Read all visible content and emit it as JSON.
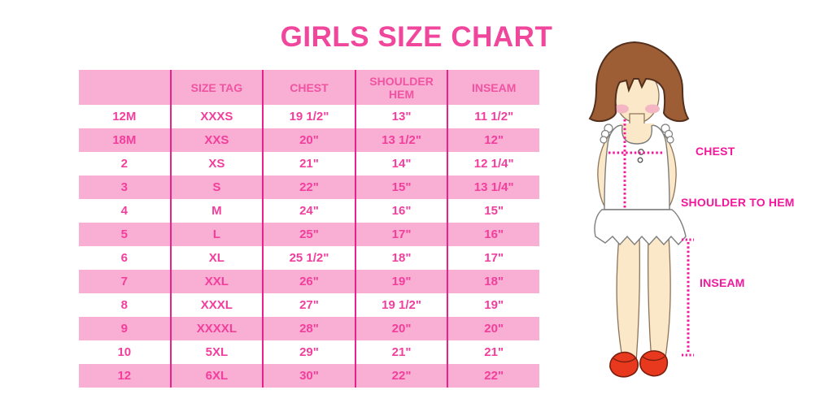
{
  "page": {
    "title": "GIRLS SIZE CHART"
  },
  "chart_data": {
    "type": "table",
    "title": "GIRLS SIZE CHART",
    "columns": [
      "",
      "SIZE TAG",
      "CHEST",
      "SHOULDER HEM",
      "INSEAM"
    ],
    "rows": [
      [
        "12M",
        "XXXS",
        "19 1/2\"",
        "13\"",
        "11 1/2\""
      ],
      [
        "18M",
        "XXS",
        "20\"",
        "13 1/2\"",
        "12\""
      ],
      [
        "2",
        "XS",
        "21\"",
        "14\"",
        "12 1/4\""
      ],
      [
        "3",
        "S",
        "22\"",
        "15\"",
        "13 1/4\""
      ],
      [
        "4",
        "M",
        "24\"",
        "16\"",
        "15\""
      ],
      [
        "5",
        "L",
        "25\"",
        "17\"",
        "16\""
      ],
      [
        "6",
        "XL",
        "25 1/2\"",
        "18\"",
        "17\""
      ],
      [
        "7",
        "XXL",
        "26\"",
        "19\"",
        "18\""
      ],
      [
        "8",
        "XXXL",
        "27\"",
        "19 1/2\"",
        "19\""
      ],
      [
        "9",
        "XXXXL",
        "28\"",
        "20\"",
        "20\""
      ],
      [
        "10",
        "5XL",
        "29\"",
        "21\"",
        "21\""
      ],
      [
        "12",
        "6XL",
        "30\"",
        "22\"",
        "22\""
      ]
    ],
    "legend_position": "none",
    "grid": "alternating-pink-stripes"
  },
  "figure": {
    "labels": {
      "chest": "CHEST",
      "shoulder_to_hem": "SHOULDER TO HEM",
      "inseam": "INSEAM"
    }
  },
  "colors": {
    "title_pink": "#f0479d",
    "row_pink": "#f9afd3",
    "divider_pink": "#e8218c",
    "cell_text_pink": "#f23e9c",
    "measure_line_pink": "#f1189b",
    "hair_brown": "#9d5e36",
    "skin": "#fbe8c8",
    "cheek_blush": "#f4b6c2",
    "shoe_red": "#e8391f",
    "background": "#ffffff"
  }
}
